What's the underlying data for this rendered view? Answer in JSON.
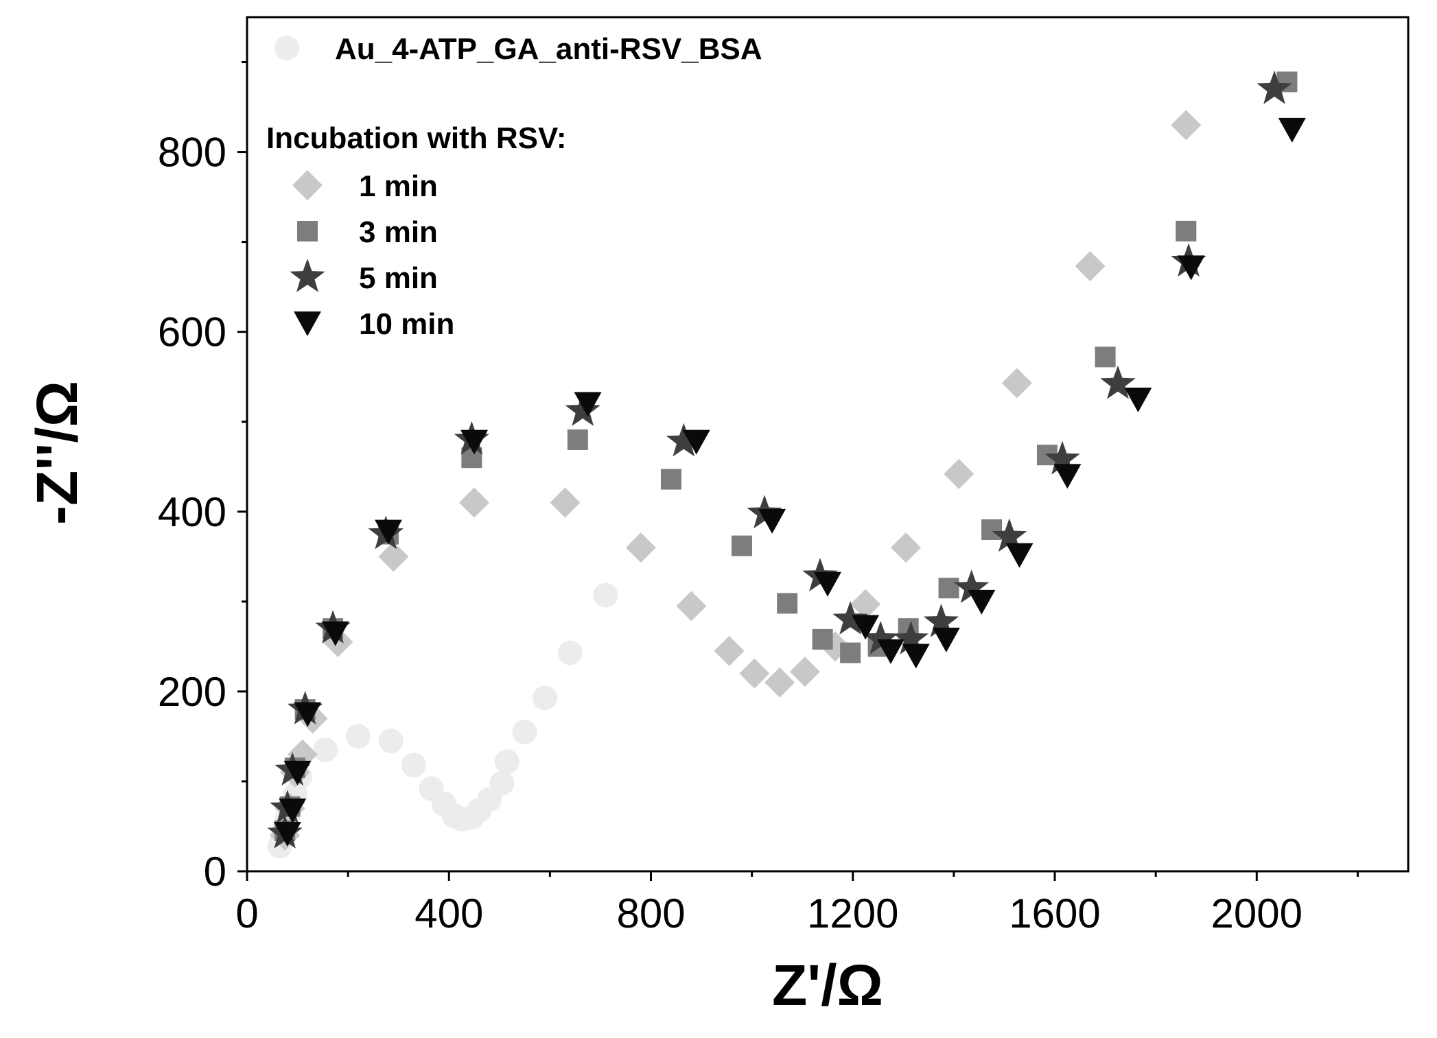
{
  "chart_data": {
    "type": "scatter",
    "title": "",
    "xlabel": "Z'/Ω",
    "ylabel": "-Z''/Ω",
    "xlim": [
      0,
      2300
    ],
    "ylim": [
      0,
      950
    ],
    "x_ticks": [
      0,
      400,
      800,
      1200,
      1600,
      2000
    ],
    "x_tick_labels": [
      "0",
      "400",
      "800",
      "1200",
      "1600",
      "2000"
    ],
    "y_ticks": [
      0,
      200,
      400,
      600,
      800
    ],
    "y_tick_labels": [
      "0",
      "200",
      "400",
      "600",
      "800"
    ],
    "x_minor_ticks": [
      200,
      600,
      1000,
      1400,
      1800,
      2200
    ],
    "y_minor_ticks": [
      100,
      300,
      500,
      700,
      900
    ],
    "legend_position": "top-left",
    "legend_heading": "Incubation with RSV:",
    "grid": false,
    "series": [
      {
        "name": "Au_4-ATP_GA_anti-RSV_BSA",
        "marker": "circle",
        "color": "#ececec",
        "x": [
          65,
          70,
          75,
          80,
          85,
          95,
          105,
          155,
          220,
          285,
          330,
          365,
          390,
          410,
          425,
          445,
          460,
          480,
          505,
          515,
          550,
          590,
          640,
          710
        ],
        "y": [
          28,
          38,
          50,
          60,
          70,
          85,
          105,
          135,
          150,
          145,
          118,
          92,
          75,
          62,
          58,
          60,
          68,
          80,
          98,
          122,
          155,
          193,
          243,
          307
        ]
      },
      {
        "name": "1 min",
        "marker": "diamond",
        "color": "#c8c8c8",
        "x": [
          75,
          85,
          95,
          110,
          130,
          180,
          290,
          450,
          630,
          780,
          880,
          955,
          1005,
          1055,
          1105,
          1165,
          1225,
          1305,
          1410,
          1525,
          1670,
          1860
        ],
        "y": [
          40,
          70,
          110,
          130,
          170,
          255,
          350,
          410,
          410,
          360,
          295,
          245,
          220,
          210,
          222,
          250,
          297,
          360,
          442,
          543,
          673,
          830
        ]
      },
      {
        "name": "3 min",
        "marker": "square",
        "color": "#7d7d7d",
        "x": [
          75,
          85,
          95,
          115,
          170,
          280,
          445,
          655,
          840,
          980,
          1070,
          1140,
          1195,
          1250,
          1310,
          1390,
          1475,
          1585,
          1700,
          1860,
          2060
        ],
        "y": [
          45,
          72,
          115,
          180,
          270,
          375,
          460,
          480,
          436,
          362,
          298,
          258,
          243,
          250,
          270,
          315,
          380,
          463,
          572,
          712,
          878
        ]
      },
      {
        "name": "5 min",
        "marker": "star",
        "color": "#3e3e3e",
        "x": [
          75,
          80,
          90,
          115,
          170,
          275,
          445,
          665,
          865,
          1025,
          1135,
          1195,
          1255,
          1315,
          1375,
          1435,
          1510,
          1615,
          1725,
          1865,
          2035
        ],
        "y": [
          42,
          70,
          112,
          180,
          270,
          375,
          480,
          512,
          478,
          398,
          328,
          280,
          258,
          258,
          277,
          315,
          372,
          458,
          542,
          678,
          870
        ]
      },
      {
        "name": "10 min",
        "marker": "triangle-down",
        "color": "#0a0a0a",
        "x": [
          80,
          90,
          100,
          120,
          175,
          280,
          450,
          675,
          890,
          1040,
          1150,
          1225,
          1275,
          1325,
          1385,
          1455,
          1530,
          1625,
          1765,
          1870,
          2070
        ],
        "y": [
          42,
          68,
          110,
          175,
          265,
          378,
          478,
          520,
          478,
          390,
          320,
          272,
          245,
          240,
          258,
          300,
          352,
          440,
          525,
          672,
          825
        ]
      }
    ]
  }
}
